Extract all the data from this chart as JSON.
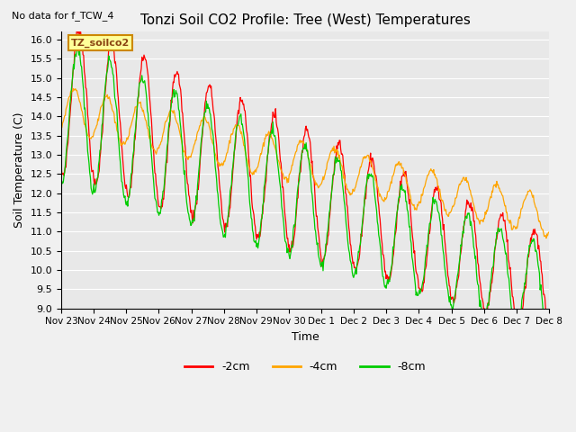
{
  "title": "Tonzi Soil CO2 Profile: Tree (West) Temperatures",
  "subtitle": "No data for f_TCW_4",
  "xlabel": "Time",
  "ylabel": "Soil Temperature (C)",
  "legend_label": "TZ_soilco2",
  "ylim": [
    9.0,
    16.2
  ],
  "line_colors": {
    "m2cm": "#ff0000",
    "m4cm": "#ffa500",
    "m8cm": "#00cc00"
  },
  "line_labels": [
    "-2cm",
    "-4cm",
    "-8cm"
  ],
  "x_tick_labels": [
    "Nov 23",
    "Nov 24",
    "Nov 25",
    "Nov 26",
    "Nov 27",
    "Nov 28",
    "Nov 29",
    "Nov 30",
    "Dec 1",
    "Dec 2",
    "Dec 3",
    "Dec 4",
    "Dec 5",
    "Dec 6",
    "Dec 7",
    "Dec 8"
  ],
  "n_days": 16,
  "n_per_day": 48,
  "fig_bg": "#f0f0f0",
  "ax_bg": "#e8e8e8"
}
